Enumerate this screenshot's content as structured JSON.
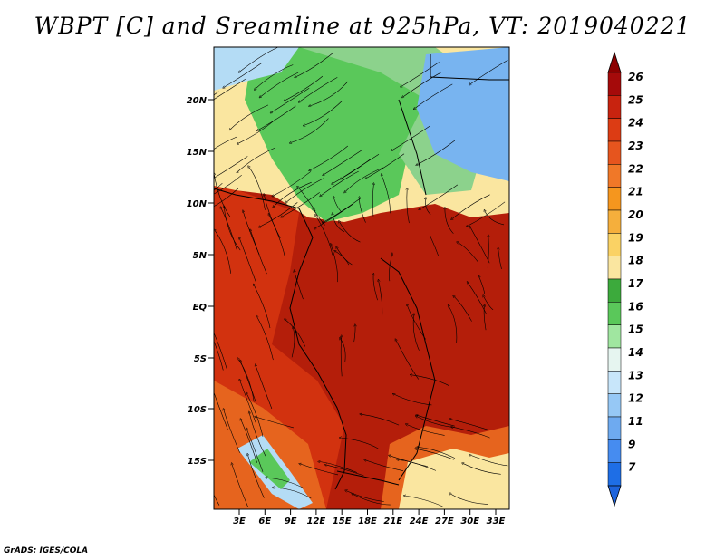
{
  "title": "WBPT [C] and Sreamline at 925hPa, VT: 2019040221",
  "footer": "GrADS: IGES/COLA",
  "map": {
    "lon_labels": [
      "3E",
      "6E",
      "9E",
      "12E",
      "15E",
      "18E",
      "21E",
      "24E",
      "27E",
      "30E",
      "33E"
    ],
    "lat_labels": [
      "20N",
      "15N",
      "10N",
      "5N",
      "EQ",
      "5S",
      "10S",
      "15S"
    ]
  },
  "colorbar": {
    "levels": [
      "26",
      "25",
      "24",
      "23",
      "22",
      "21",
      "20",
      "19",
      "18",
      "17",
      "16",
      "15",
      "14",
      "13",
      "12",
      "11",
      "9",
      "7"
    ],
    "colors": [
      "#a50a0a",
      "#c8230f",
      "#dc3c14",
      "#e6551e",
      "#f07828",
      "#f5961e",
      "#f5af3c",
      "#fad264",
      "#fae6a0",
      "#3caa3c",
      "#5ac85a",
      "#a0e6a0",
      "#e6f5f0",
      "#c8e6fa",
      "#96c8f5",
      "#6eaaf0",
      "#468cf0",
      "#1e6ee6"
    ],
    "top_arrow_color": "#8c0000",
    "bottom_arrow_color": "#1e64dc"
  },
  "fill_colors": {
    "hot": "#b41e0a",
    "warm": "#d2320f",
    "orange": "#e6641e",
    "tan": "#fae6a0",
    "green": "#5ac85a",
    "lightgreen": "#8cd28c",
    "blue": "#78b4f0",
    "lightblue": "#b4dcf5"
  }
}
